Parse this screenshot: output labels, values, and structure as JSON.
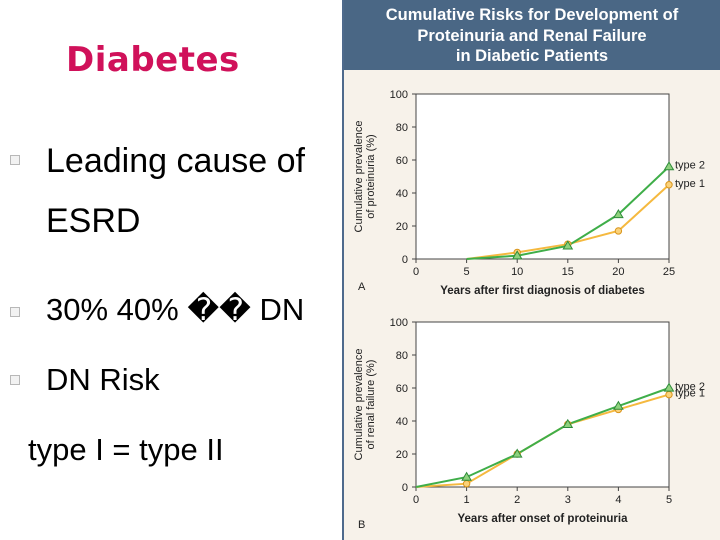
{
  "slide": {
    "title": "Diabetes",
    "bullets": [
      {
        "text": "Leading cause of"
      },
      {
        "text": "ESRD"
      },
      {
        "text": "30% 40% �� DN"
      },
      {
        "text": "DN Risk"
      },
      {
        "text": "type I = type II"
      }
    ]
  },
  "figure": {
    "header": [
      "Cumulative Risks for Development of",
      "Proteinuria and Renal Failure",
      "in Diabetic Patients"
    ]
  },
  "colors": {
    "type2": "#3fae49",
    "type1": "#f5b93f",
    "header_bg": "#4a6785",
    "title": "#d0115a"
  },
  "chart_data": [
    {
      "type": "line",
      "panel_label": "A",
      "xlabel": "Years after first diagnosis of diabetes",
      "ylabel": [
        "Cumulative prevalence",
        "of proteinuria (%)"
      ],
      "xlim": [
        0,
        25
      ],
      "ylim": [
        0,
        100
      ],
      "xticks": [
        "0",
        "5",
        "10",
        "15",
        "20",
        "25"
      ],
      "yticks": [
        "0",
        "20",
        "40",
        "60",
        "80",
        "100"
      ],
      "grid": false,
      "series": [
        {
          "name": "type 2",
          "x": [
            5,
            10,
            15,
            20,
            25
          ],
          "values": [
            0,
            2,
            8,
            27,
            56
          ]
        },
        {
          "name": "type 1",
          "x": [
            5,
            10,
            15,
            20,
            25
          ],
          "values": [
            0,
            4,
            9,
            17,
            45
          ]
        }
      ]
    },
    {
      "type": "line",
      "panel_label": "B",
      "xlabel": "Years after onset of proteinuria",
      "ylabel": [
        "Cumulative prevalence",
        "of renal failure (%)"
      ],
      "xlim": [
        0,
        5
      ],
      "ylim": [
        0,
        100
      ],
      "xticks": [
        "0",
        "1",
        "2",
        "3",
        "4",
        "5"
      ],
      "yticks": [
        "0",
        "20",
        "40",
        "60",
        "80",
        "100"
      ],
      "grid": false,
      "series": [
        {
          "name": "type 2",
          "x": [
            0,
            1,
            2,
            3,
            4,
            5
          ],
          "values": [
            0,
            6,
            20,
            38,
            49,
            60
          ]
        },
        {
          "name": "type 1",
          "x": [
            0,
            1,
            2,
            3,
            4,
            5
          ],
          "values": [
            0,
            2,
            20,
            38,
            47,
            56
          ]
        }
      ]
    }
  ]
}
